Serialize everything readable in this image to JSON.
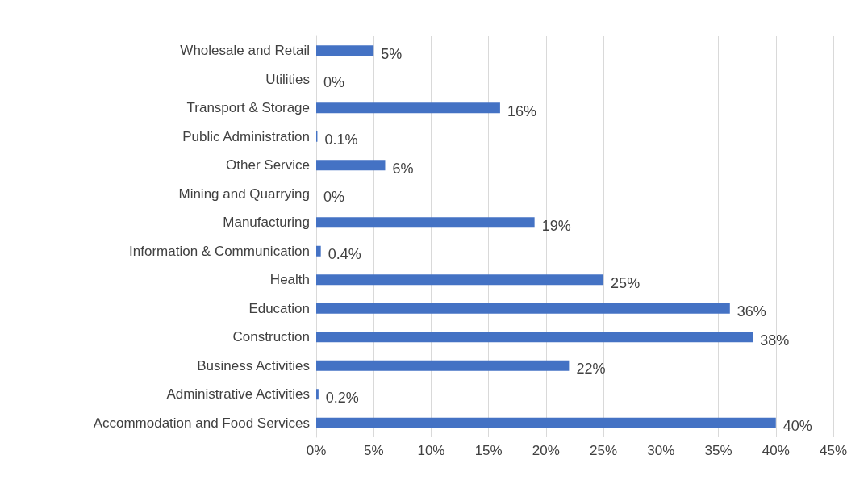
{
  "chart_data": {
    "type": "bar",
    "orientation": "horizontal",
    "categories": [
      "Wholesale and Retail",
      "Utilities",
      "Transport & Storage",
      "Public Administration",
      "Other Service",
      "Mining and Quarrying",
      "Manufacturing",
      "Information & Communication",
      "Health",
      "Education",
      "Construction",
      "Business Activities",
      "Administrative Activities",
      "Accommodation and Food Services"
    ],
    "values": [
      5,
      0,
      16,
      0.1,
      6,
      0,
      19,
      0.4,
      25,
      36,
      38,
      22,
      0.2,
      40
    ],
    "value_labels": [
      "5%",
      "0%",
      "16%",
      "0.1%",
      "6%",
      "0%",
      "19%",
      "0.4%",
      "25%",
      "36%",
      "38%",
      "22%",
      "0.2%",
      "40%"
    ],
    "color": "#4472c4",
    "xlim": [
      0,
      45
    ],
    "xticks": [
      {
        "value": 0,
        "label": "0%"
      },
      {
        "value": 5,
        "label": "5%"
      },
      {
        "value": 10,
        "label": "10%"
      },
      {
        "value": 15,
        "label": "15%"
      },
      {
        "value": 20,
        "label": "20%"
      },
      {
        "value": 25,
        "label": "25%"
      },
      {
        "value": 30,
        "label": "30%"
      },
      {
        "value": 35,
        "label": "35%"
      },
      {
        "value": 40,
        "label": "40%"
      },
      {
        "value": 45,
        "label": "45%"
      }
    ],
    "grid": "x"
  }
}
